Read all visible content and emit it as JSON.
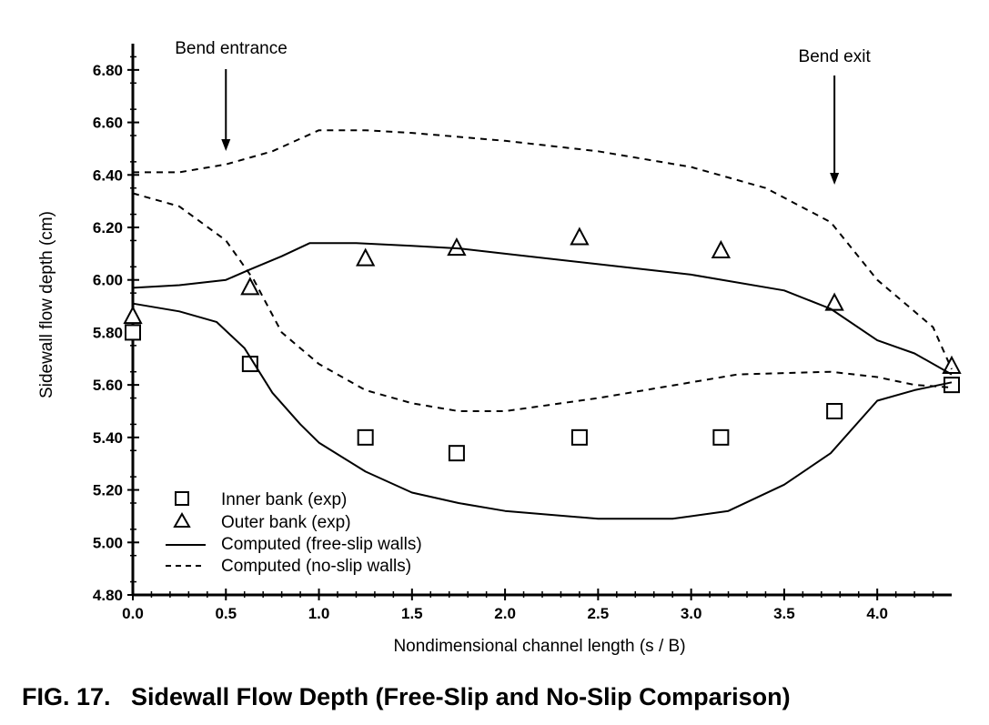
{
  "chart_data": {
    "type": "line",
    "title": "",
    "caption": "FIG. 17.   Sidewall Flow Depth (Free-Slip and No-Slip Comparison)",
    "xlabel": "Nondimensional channel length (s / B)",
    "ylabel": "Sidewall flow depth (cm)",
    "xlim": [
      0.0,
      4.4
    ],
    "ylim": [
      4.8,
      6.9
    ],
    "x_ticks": [
      "0.0",
      "0.5",
      "1.0",
      "1.5",
      "2.0",
      "2.5",
      "3.0",
      "3.5",
      "4.0"
    ],
    "y_ticks": [
      "4.80",
      "5.00",
      "5.20",
      "5.40",
      "5.60",
      "5.80",
      "6.00",
      "6.20",
      "6.40",
      "6.60",
      "6.80"
    ],
    "grid": false,
    "legend_position": "bottom-left",
    "annotations": [
      {
        "text": "Bend entrance",
        "x": 0.5
      },
      {
        "text": "Bend exit",
        "x": 3.77
      }
    ],
    "series": [
      {
        "name": "Inner bank (exp)",
        "kind": "scatter",
        "marker": "square",
        "x": [
          0.0,
          0.63,
          1.25,
          1.74,
          2.4,
          3.16,
          3.77,
          4.4
        ],
        "y": [
          5.8,
          5.68,
          5.4,
          5.34,
          5.4,
          5.4,
          5.5,
          5.6
        ]
      },
      {
        "name": "Outer bank (exp)",
        "kind": "scatter",
        "marker": "triangle",
        "x": [
          0.0,
          0.63,
          1.25,
          1.74,
          2.4,
          3.16,
          3.77,
          4.4
        ],
        "y": [
          5.86,
          5.97,
          6.08,
          6.12,
          6.16,
          6.11,
          5.91,
          5.67
        ]
      },
      {
        "name": "Computed (free-slip walls)",
        "kind": "line",
        "style": "solid",
        "curves": [
          {
            "x": [
              0.0,
              0.25,
              0.5,
              0.63,
              0.8,
              0.95,
              1.2,
              1.5,
              1.75,
              2.0,
              2.5,
              3.0,
              3.5,
              3.75,
              4.0,
              4.2,
              4.4
            ],
            "y": [
              5.97,
              5.98,
              6.0,
              6.04,
              6.09,
              6.14,
              6.14,
              6.13,
              6.12,
              6.1,
              6.06,
              6.02,
              5.96,
              5.89,
              5.77,
              5.72,
              5.64
            ]
          },
          {
            "x": [
              0.0,
              0.25,
              0.45,
              0.6,
              0.75,
              0.9,
              1.0,
              1.25,
              1.5,
              1.75,
              2.0,
              2.5,
              2.9,
              3.2,
              3.5,
              3.75,
              4.0,
              4.2,
              4.4
            ],
            "y": [
              5.91,
              5.88,
              5.84,
              5.74,
              5.57,
              5.45,
              5.38,
              5.27,
              5.19,
              5.15,
              5.12,
              5.09,
              5.09,
              5.12,
              5.22,
              5.34,
              5.54,
              5.58,
              5.61
            ]
          }
        ]
      },
      {
        "name": "Computed (no-slip walls)",
        "kind": "line",
        "style": "dashed",
        "curves": [
          {
            "x": [
              0.0,
              0.25,
              0.5,
              0.75,
              1.0,
              1.25,
              1.5,
              2.0,
              2.5,
              3.0,
              3.4,
              3.75,
              4.0,
              4.3,
              4.4
            ],
            "y": [
              6.41,
              6.41,
              6.44,
              6.49,
              6.57,
              6.57,
              6.56,
              6.53,
              6.49,
              6.43,
              6.35,
              6.22,
              6.0,
              5.82,
              5.66
            ]
          },
          {
            "x": [
              0.0,
              0.25,
              0.5,
              0.65,
              0.8,
              1.0,
              1.25,
              1.5,
              1.75,
              2.0,
              2.5,
              3.0,
              3.25,
              3.75,
              4.0,
              4.2,
              4.4
            ],
            "y": [
              6.33,
              6.28,
              6.15,
              6.0,
              5.8,
              5.68,
              5.58,
              5.53,
              5.5,
              5.5,
              5.55,
              5.61,
              5.64,
              5.65,
              5.63,
              5.6,
              5.59
            ]
          }
        ]
      }
    ]
  }
}
